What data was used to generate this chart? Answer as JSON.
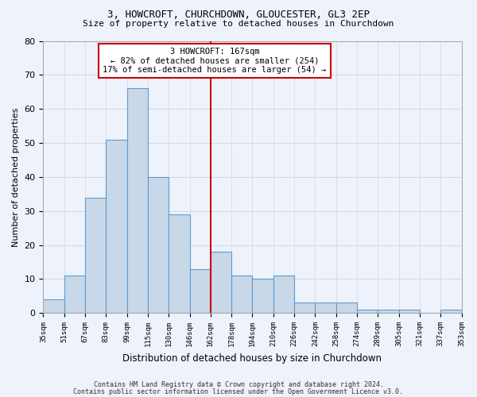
{
  "title1": "3, HOWCROFT, CHURCHDOWN, GLOUCESTER, GL3 2EP",
  "title2": "Size of property relative to detached houses in Churchdown",
  "xlabel": "Distribution of detached houses by size in Churchdown",
  "ylabel": "Number of detached properties",
  "bar_values": [
    4,
    11,
    34,
    51,
    66,
    40,
    29,
    13,
    18,
    11,
    10,
    11,
    3,
    3,
    3,
    1,
    1,
    1,
    0,
    1
  ],
  "bin_labels": [
    "35sqm",
    "51sqm",
    "67sqm",
    "83sqm",
    "99sqm",
    "115sqm",
    "130sqm",
    "146sqm",
    "162sqm",
    "178sqm",
    "194sqm",
    "210sqm",
    "226sqm",
    "242sqm",
    "258sqm",
    "274sqm",
    "289sqm",
    "305sqm",
    "321sqm",
    "337sqm",
    "353sqm"
  ],
  "bar_color": "#c8d8e8",
  "bar_edge_color": "#5b9bd5",
  "vline_x": 8,
  "vline_color": "#cc0000",
  "ylim": [
    0,
    80
  ],
  "yticks": [
    0,
    10,
    20,
    30,
    40,
    50,
    60,
    70,
    80
  ],
  "annotation_text": "3 HOWCROFT: 167sqm\n← 82% of detached houses are smaller (254)\n17% of semi-detached houses are larger (54) →",
  "annotation_box_color": "#ffffff",
  "annotation_box_edge": "#cc0000",
  "footer1": "Contains HM Land Registry data © Crown copyright and database right 2024.",
  "footer2": "Contains public sector information licensed under the Open Government Licence v3.0.",
  "grid_color": "#d0d8e8",
  "background_color": "#eef2fa"
}
